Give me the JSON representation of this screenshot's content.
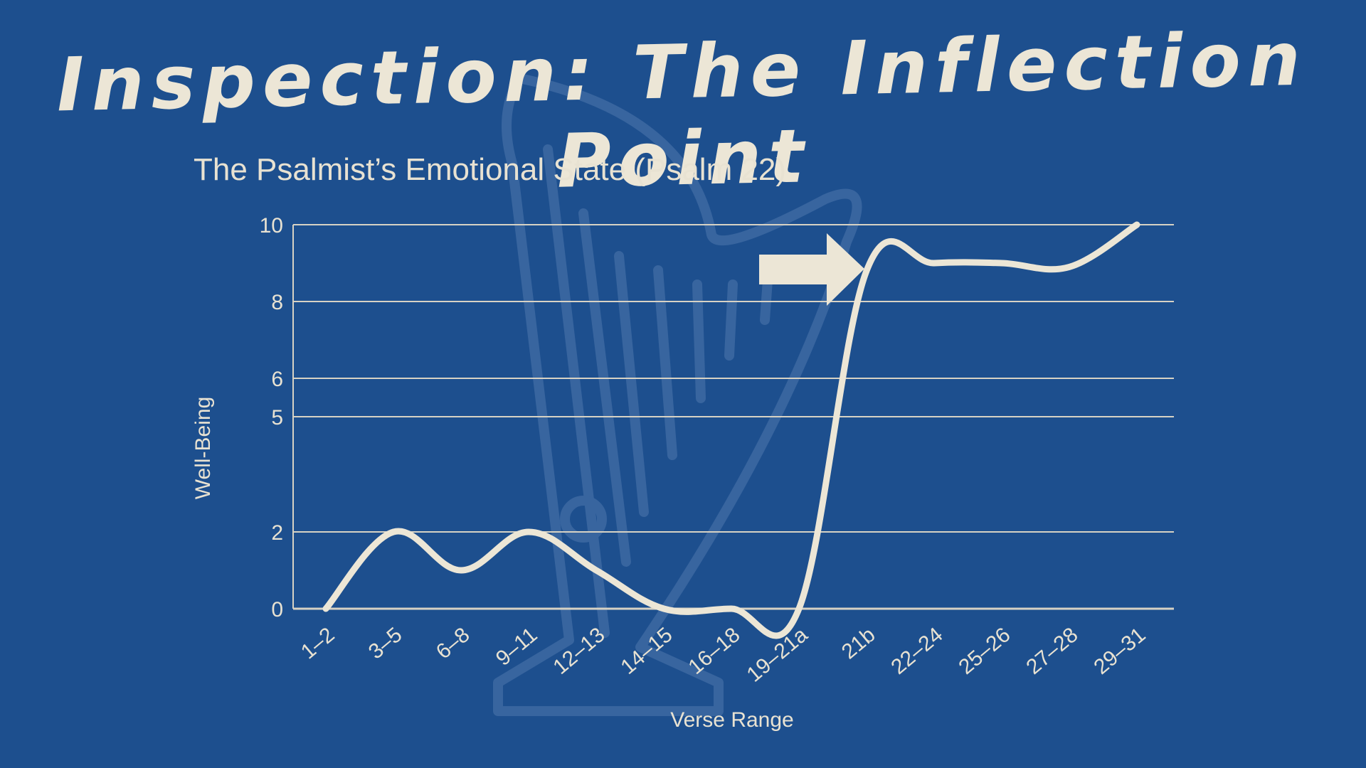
{
  "slide": {
    "title": "Inspection: The Inflection Point"
  },
  "colors": {
    "background": "#1d4f8e",
    "line": "#ece6d6",
    "grid": "#d7d2c4",
    "watermark": "#3d69a2"
  },
  "icons": {
    "watermark": "harp-icon",
    "annotation": "right-arrow-icon"
  },
  "chart_data": {
    "type": "line",
    "title": "The Psalmist’s Emotional State (Psalm 22)",
    "xlabel": "Verse Range",
    "ylabel": "Well-Being",
    "categories": [
      "1–2",
      "3–5",
      "6–8",
      "9–11",
      "12–13",
      "14–15",
      "16–18",
      "19–21a",
      "21b",
      "22–24",
      "25–26",
      "27–28",
      "29–31"
    ],
    "y_ticks": [
      0,
      2,
      5,
      6,
      8,
      10
    ],
    "grid": true,
    "ylim": [
      0,
      10
    ],
    "series": [
      {
        "name": "Well-Being",
        "values": [
          0,
          2,
          1,
          2,
          1,
          0,
          0,
          0,
          8.8,
          9.0,
          9.0,
          8.9,
          10
        ]
      }
    ],
    "annotation": {
      "type": "arrow",
      "points_to": "21b"
    }
  }
}
